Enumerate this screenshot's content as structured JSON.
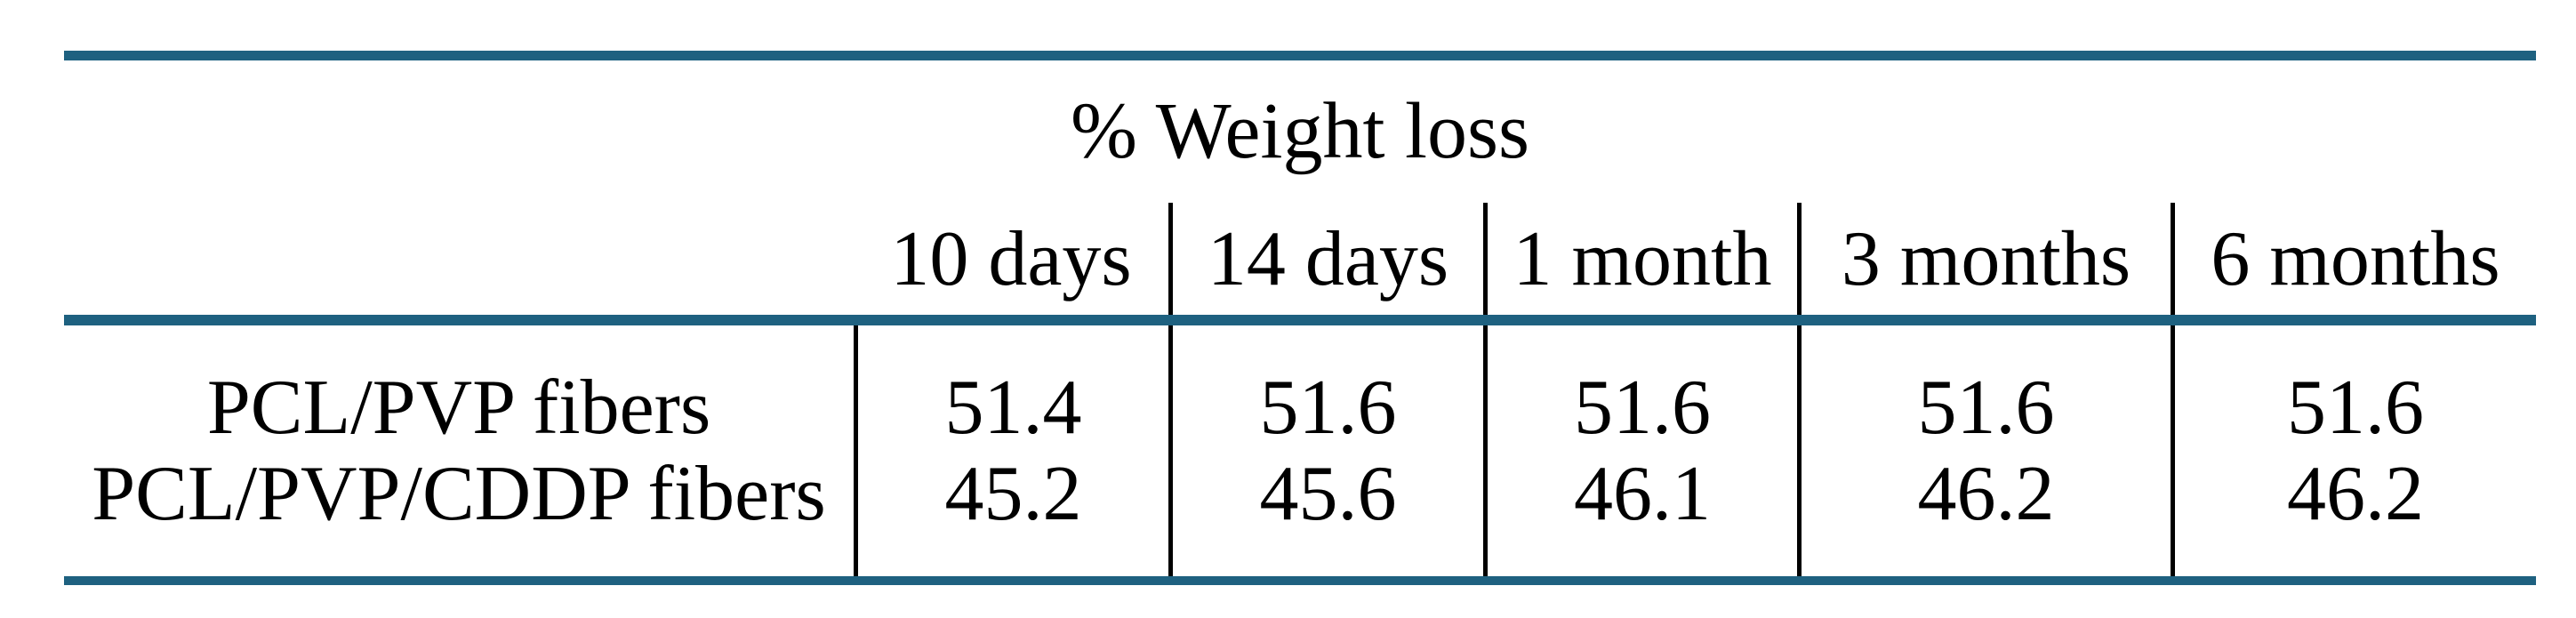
{
  "table": {
    "title": "% Weight loss",
    "columns": [
      "10 days",
      "14 days",
      "1 month",
      "3 months",
      "6 months"
    ],
    "rows": [
      {
        "label": "PCL/PVP fibers",
        "values": [
          "51.4",
          "51.6",
          "51.6",
          "51.6",
          "51.6"
        ]
      },
      {
        "label": "PCL/PVP/CDDP fibers",
        "values": [
          "45.2",
          "45.6",
          "46.1",
          "46.2",
          "46.2"
        ]
      }
    ],
    "colors": {
      "rule": "#1e6180",
      "text": "#000000",
      "divider": "#000000",
      "background": "#ffffff"
    }
  },
  "chart_data": {
    "type": "table",
    "title": "% Weight loss",
    "categories": [
      "10 days",
      "14 days",
      "1 month",
      "3 months",
      "6 months"
    ],
    "series": [
      {
        "name": "PCL/PVP fibers",
        "values": [
          51.4,
          51.6,
          51.6,
          51.6,
          51.6
        ]
      },
      {
        "name": "PCL/PVP/CDDP fibers",
        "values": [
          45.2,
          45.6,
          46.1,
          46.2,
          46.2
        ]
      }
    ]
  }
}
